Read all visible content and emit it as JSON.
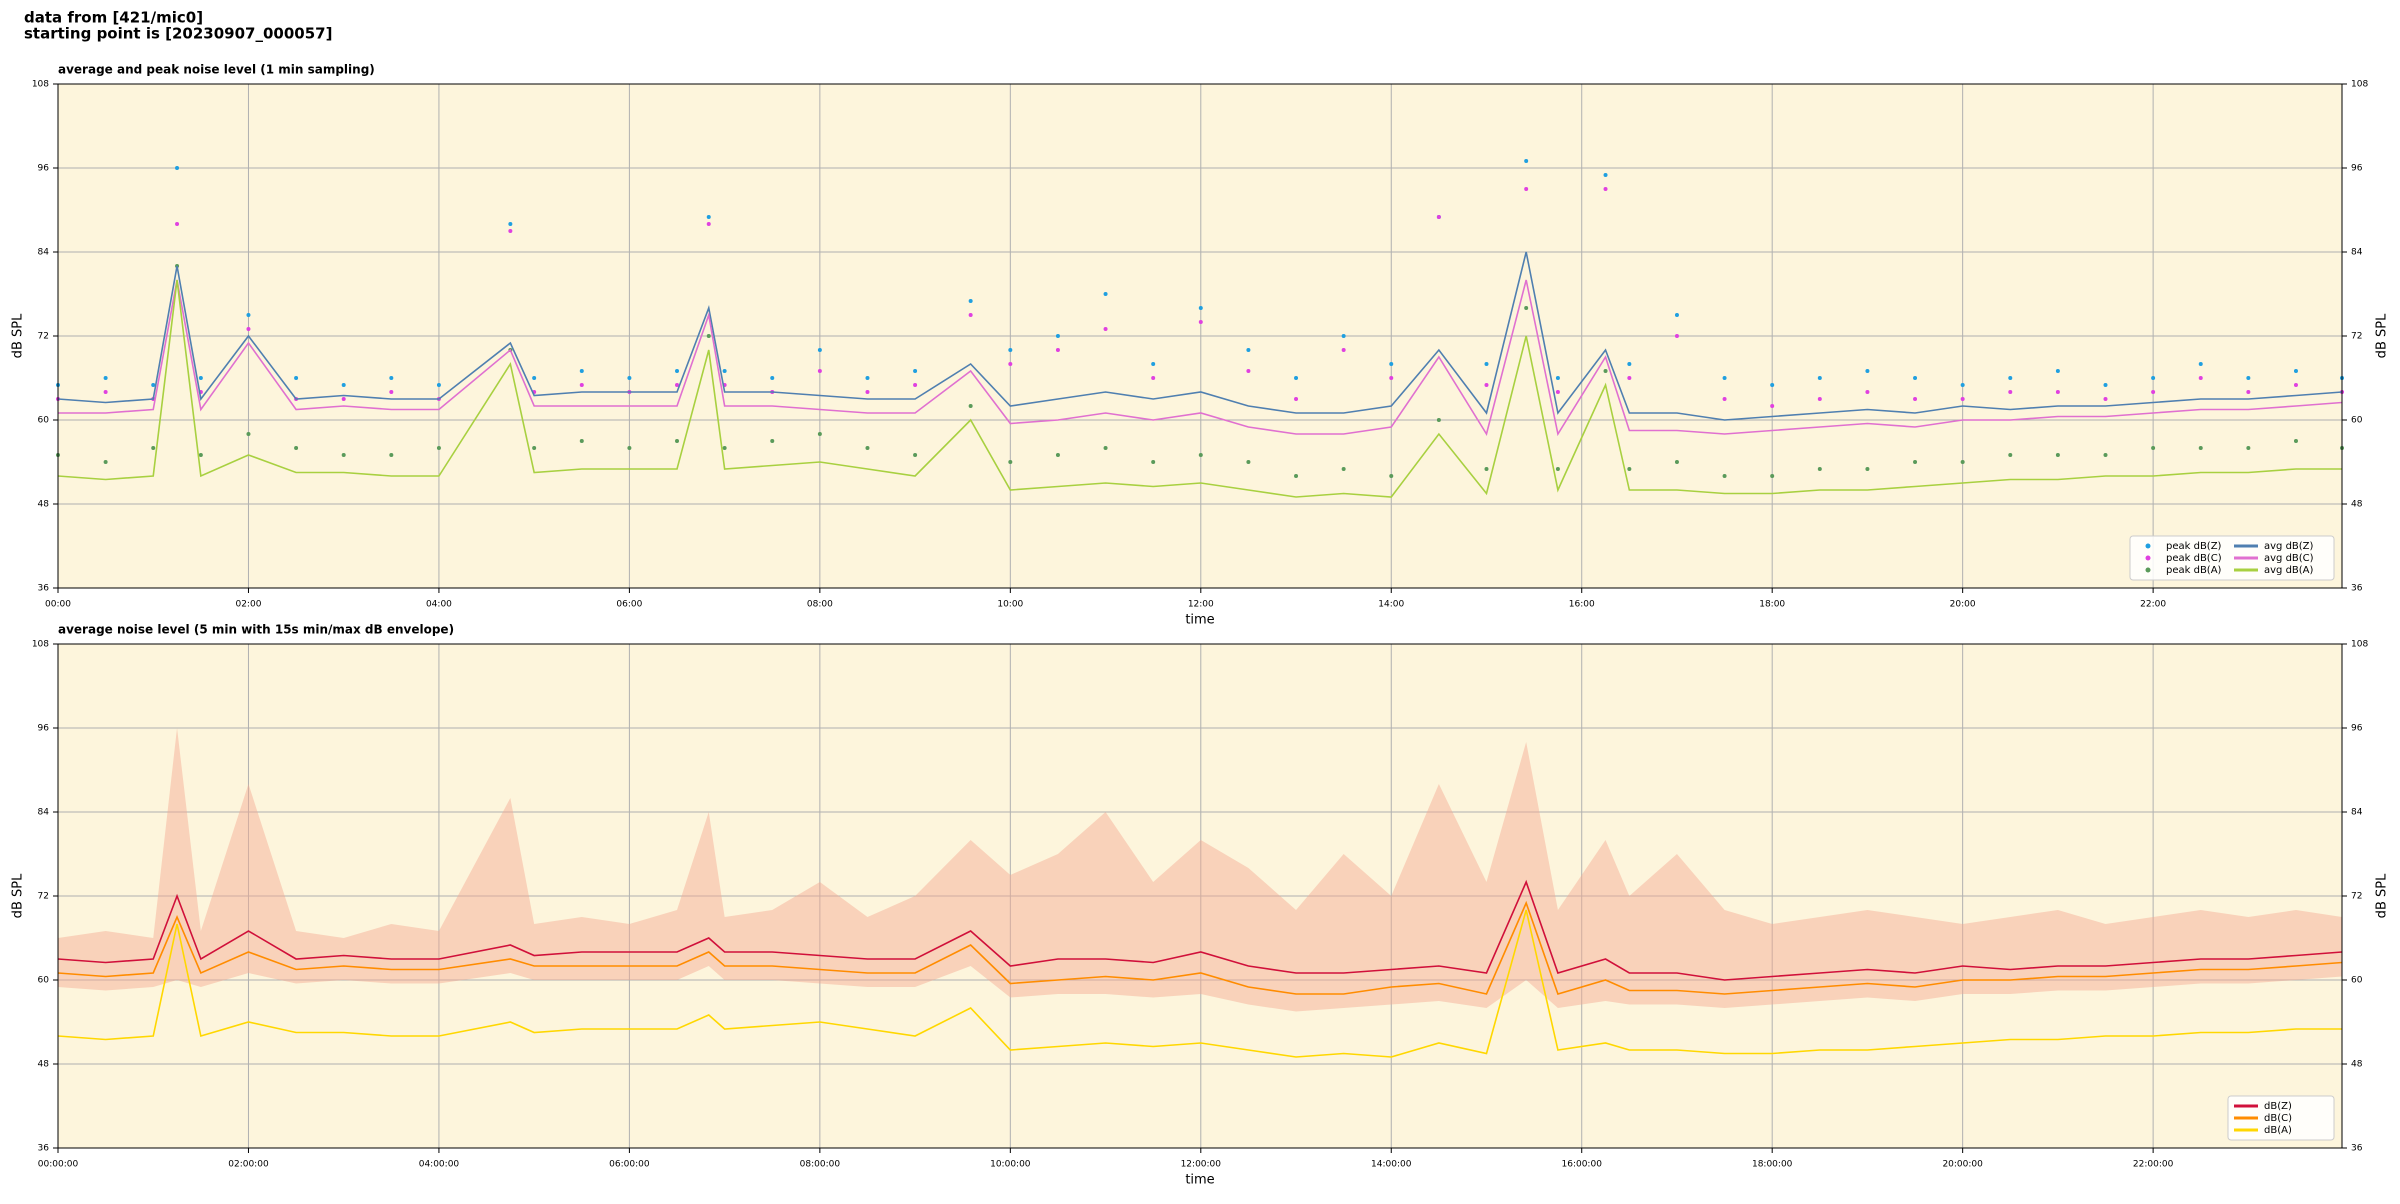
{
  "header": {
    "line1": "data from [421/mic0]",
    "line2": "starting point is [20230907_000057]"
  },
  "chart_data": [
    {
      "type": "line",
      "title": "average and peak noise level (1 min sampling)",
      "xlabel": "time",
      "ylabel": "dB SPL",
      "y2label": "dB SPL",
      "background": "#fdf5dc",
      "grid": true,
      "legend": "lower right",
      "legend_columns": 2,
      "x": [
        "00:00",
        "00:30",
        "01:00",
        "01:15",
        "01:30",
        "02:00",
        "02:30",
        "03:00",
        "03:30",
        "04:00",
        "04:45",
        "05:00",
        "05:30",
        "06:00",
        "06:30",
        "06:50",
        "07:00",
        "07:30",
        "08:00",
        "08:30",
        "09:00",
        "09:35",
        "10:00",
        "10:30",
        "11:00",
        "11:30",
        "12:00",
        "12:30",
        "13:00",
        "13:30",
        "14:00",
        "14:30",
        "15:00",
        "15:25",
        "15:45",
        "16:15",
        "16:30",
        "17:00",
        "17:30",
        "18:00",
        "18:30",
        "19:00",
        "19:30",
        "20:00",
        "20:30",
        "21:00",
        "21:30",
        "22:00",
        "22:30",
        "23:00",
        "23:30",
        "23:59"
      ],
      "xlim": [
        "00:00",
        "23:59"
      ],
      "xticks": [
        "00:00",
        "02:00",
        "04:00",
        "06:00",
        "08:00",
        "10:00",
        "12:00",
        "14:00",
        "16:00",
        "18:00",
        "20:00",
        "22:00"
      ],
      "ylim": [
        36,
        108
      ],
      "yticks": [
        36,
        48,
        60,
        72,
        84,
        96,
        108
      ],
      "y2lim": [
        36,
        108
      ],
      "y2ticks": [
        36,
        48,
        60,
        72,
        84,
        96,
        108
      ],
      "series": [
        {
          "name": "peak dB(Z)",
          "color": "#1f9fe0",
          "mode": "markers",
          "values": [
            65,
            66,
            65,
            96,
            66,
            75,
            66,
            65,
            66,
            65,
            88,
            66,
            67,
            66,
            67,
            89,
            67,
            66,
            70,
            66,
            67,
            77,
            70,
            72,
            78,
            68,
            76,
            70,
            66,
            72,
            68,
            89,
            68,
            97,
            66,
            95,
            68,
            75,
            66,
            65,
            66,
            67,
            66,
            65,
            66,
            67,
            65,
            66,
            68,
            66,
            67,
            66
          ]
        },
        {
          "name": "peak dB(C)",
          "color": "#e040e0",
          "mode": "markers",
          "values": [
            63,
            64,
            63,
            88,
            64,
            73,
            63,
            63,
            64,
            63,
            87,
            64,
            65,
            64,
            65,
            88,
            65,
            64,
            67,
            64,
            65,
            75,
            68,
            70,
            73,
            66,
            74,
            67,
            63,
            70,
            66,
            89,
            65,
            93,
            64,
            93,
            66,
            72,
            63,
            62,
            63,
            64,
            63,
            63,
            64,
            64,
            63,
            64,
            66,
            64,
            65,
            64
          ]
        },
        {
          "name": "peak dB(A)",
          "color": "#5a9a5a",
          "mode": "markers",
          "values": [
            55,
            54,
            56,
            82,
            55,
            58,
            56,
            55,
            55,
            56,
            70,
            56,
            57,
            56,
            57,
            72,
            56,
            57,
            58,
            56,
            55,
            62,
            54,
            55,
            56,
            54,
            55,
            54,
            52,
            53,
            52,
            60,
            53,
            76,
            53,
            67,
            53,
            54,
            52,
            52,
            53,
            53,
            54,
            54,
            55,
            55,
            55,
            56,
            56,
            56,
            57,
            56
          ]
        },
        {
          "name": "avg dB(Z)",
          "color": "#4f7fb0",
          "mode": "lines",
          "values": [
            63,
            62.5,
            63,
            82,
            63,
            72,
            63,
            63.5,
            63,
            63,
            71,
            63.5,
            64,
            64,
            64,
            76,
            64,
            64,
            63.5,
            63,
            63,
            68,
            62,
            63,
            64,
            63,
            64,
            62,
            61,
            61,
            62,
            70,
            61,
            84,
            61,
            70,
            61,
            61,
            60,
            60.5,
            61,
            61.5,
            61,
            62,
            61.5,
            62,
            62,
            62.5,
            63,
            63,
            63.5,
            64
          ]
        },
        {
          "name": "avg dB(C)",
          "color": "#e070d0",
          "mode": "lines",
          "values": [
            61,
            61,
            61.5,
            80,
            61.5,
            71,
            61.5,
            62,
            61.5,
            61.5,
            70,
            62,
            62,
            62,
            62,
            75,
            62,
            62,
            61.5,
            61,
            61,
            67,
            59.5,
            60,
            61,
            60,
            61,
            59,
            58,
            58,
            59,
            69,
            58,
            80,
            58,
            69,
            58.5,
            58.5,
            58,
            58.5,
            59,
            59.5,
            59,
            60,
            60,
            60.5,
            60.5,
            61,
            61.5,
            61.5,
            62,
            62.5
          ]
        },
        {
          "name": "avg dB(A)",
          "color": "#a8d040",
          "mode": "lines",
          "values": [
            52,
            51.5,
            52,
            80,
            52,
            55,
            52.5,
            52.5,
            52,
            52,
            68,
            52.5,
            53,
            53,
            53,
            70,
            53,
            53.5,
            54,
            53,
            52,
            60,
            50,
            50.5,
            51,
            50.5,
            51,
            50,
            49,
            49.5,
            49,
            58,
            49.5,
            72,
            50,
            65,
            50,
            50,
            49.5,
            49.5,
            50,
            50,
            50.5,
            51,
            51.5,
            51.5,
            52,
            52,
            52.5,
            52.5,
            53,
            53
          ]
        }
      ]
    },
    {
      "type": "line",
      "title": "average noise level (5 min with 15s min/max dB envelope)",
      "xlabel": "time",
      "ylabel": "dB SPL",
      "y2label": "dB SPL",
      "background": "#fdf5dc",
      "grid": true,
      "legend": "lower right",
      "legend_columns": 1,
      "x": [
        "00:00",
        "00:30",
        "01:00",
        "01:15",
        "01:30",
        "02:00",
        "02:30",
        "03:00",
        "03:30",
        "04:00",
        "04:45",
        "05:00",
        "05:30",
        "06:00",
        "06:30",
        "06:50",
        "07:00",
        "07:30",
        "08:00",
        "08:30",
        "09:00",
        "09:35",
        "10:00",
        "10:30",
        "11:00",
        "11:30",
        "12:00",
        "12:30",
        "13:00",
        "13:30",
        "14:00",
        "14:30",
        "15:00",
        "15:25",
        "15:45",
        "16:15",
        "16:30",
        "17:00",
        "17:30",
        "18:00",
        "18:30",
        "19:00",
        "19:30",
        "20:00",
        "20:30",
        "21:00",
        "21:30",
        "22:00",
        "22:30",
        "23:00",
        "23:30",
        "23:59"
      ],
      "xlim": [
        "00:00",
        "23:59"
      ],
      "xticks": [
        {
          "value": "00:00",
          "label": "00:00:00"
        },
        {
          "value": "02:00",
          "label": "02:00:00"
        },
        {
          "value": "04:00",
          "label": "04:00:00"
        },
        {
          "value": "06:00",
          "label": "06:00:00"
        },
        {
          "value": "08:00",
          "label": "08:00:00"
        },
        {
          "value": "10:00",
          "label": "10:00:00"
        },
        {
          "value": "12:00",
          "label": "12:00:00"
        },
        {
          "value": "14:00",
          "label": "14:00:00"
        },
        {
          "value": "16:00",
          "label": "16:00:00"
        },
        {
          "value": "18:00",
          "label": "18:00:00"
        },
        {
          "value": "20:00",
          "label": "20:00:00"
        },
        {
          "value": "22:00",
          "label": "22:00:00"
        }
      ],
      "ylim": [
        36,
        108
      ],
      "yticks": [
        36,
        48,
        60,
        72,
        84,
        96,
        108
      ],
      "y2lim": [
        36,
        108
      ],
      "y2ticks": [
        36,
        48,
        60,
        72,
        84,
        96,
        108
      ],
      "band": {
        "color": "#f4a890",
        "lower": [
          59,
          58.5,
          59,
          60,
          59,
          61,
          59.5,
          60,
          59.5,
          59.5,
          61,
          60,
          60,
          60,
          60,
          62,
          60,
          60,
          59.5,
          59,
          59,
          62,
          57.5,
          58,
          58,
          57.5,
          58,
          56.5,
          55.5,
          56,
          56.5,
          57,
          56,
          60,
          56,
          57,
          56.5,
          56.5,
          56,
          56.5,
          57,
          57.5,
          57,
          58,
          58,
          58.5,
          58.5,
          59,
          59.5,
          59.5,
          60,
          60.5
        ],
        "upper": [
          66,
          67,
          66,
          96,
          67,
          88,
          67,
          66,
          68,
          67,
          86,
          68,
          69,
          68,
          70,
          84,
          69,
          70,
          74,
          69,
          72,
          80,
          75,
          78,
          84,
          74,
          80,
          76,
          70,
          78,
          72,
          88,
          74,
          94,
          70,
          80,
          72,
          78,
          70,
          68,
          69,
          70,
          69,
          68,
          69,
          70,
          68,
          69,
          70,
          69,
          70,
          69
        ]
      },
      "series": [
        {
          "name": "dB(Z)",
          "color": "#d0103a",
          "mode": "lines",
          "values": [
            63,
            62.5,
            63,
            72,
            63,
            67,
            63,
            63.5,
            63,
            63,
            65,
            63.5,
            64,
            64,
            64,
            66,
            64,
            64,
            63.5,
            63,
            63,
            67,
            62,
            63,
            63,
            62.5,
            64,
            62,
            61,
            61,
            61.5,
            62,
            61,
            74,
            61,
            63,
            61,
            61,
            60,
            60.5,
            61,
            61.5,
            61,
            62,
            61.5,
            62,
            62,
            62.5,
            63,
            63,
            63.5,
            64
          ]
        },
        {
          "name": "dB(C)",
          "color": "#ff8c00",
          "mode": "lines",
          "values": [
            61,
            60.5,
            61,
            69,
            61,
            64,
            61.5,
            62,
            61.5,
            61.5,
            63,
            62,
            62,
            62,
            62,
            64,
            62,
            62,
            61.5,
            61,
            61,
            65,
            59.5,
            60,
            60.5,
            60,
            61,
            59,
            58,
            58,
            59,
            59.5,
            58,
            71,
            58,
            60,
            58.5,
            58.5,
            58,
            58.5,
            59,
            59.5,
            59,
            60,
            60,
            60.5,
            60.5,
            61,
            61.5,
            61.5,
            62,
            62.5
          ]
        },
        {
          "name": "dB(A)",
          "color": "#ffd700",
          "mode": "lines",
          "values": [
            52,
            51.5,
            52,
            68,
            52,
            54,
            52.5,
            52.5,
            52,
            52,
            54,
            52.5,
            53,
            53,
            53,
            55,
            53,
            53.5,
            54,
            53,
            52,
            56,
            50,
            50.5,
            51,
            50.5,
            51,
            50,
            49,
            49.5,
            49,
            51,
            49.5,
            70,
            50,
            51,
            50,
            50,
            49.5,
            49.5,
            50,
            50,
            50.5,
            51,
            51.5,
            51.5,
            52,
            52,
            52.5,
            52.5,
            53,
            53
          ]
        }
      ]
    }
  ]
}
